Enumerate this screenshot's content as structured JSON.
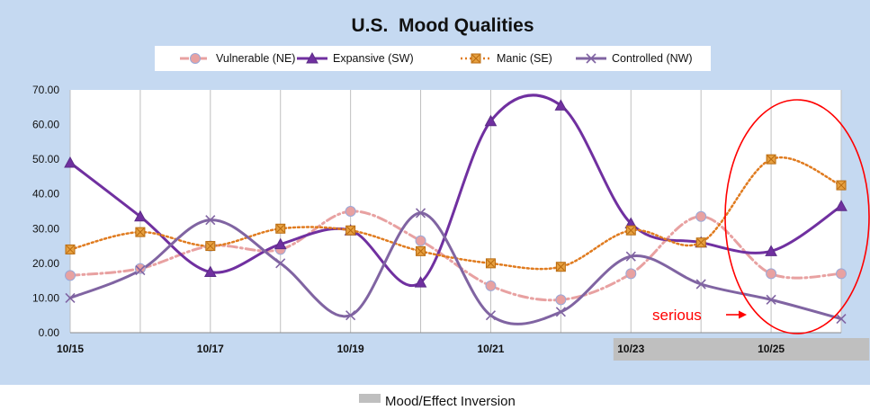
{
  "chart_data": {
    "type": "line",
    "title": "U.S.  Mood Qualities",
    "xlabel": "",
    "ylabel": "",
    "x_labels": [
      "10/15",
      "",
      "10/17",
      "",
      "10/19",
      "",
      "10/21",
      "",
      "10/23",
      "",
      "10/25",
      ""
    ],
    "ylim": [
      0,
      70
    ],
    "yticks": [
      "0.00",
      "10.00",
      "20.00",
      "30.00",
      "40.00",
      "50.00",
      "60.00",
      "70.00"
    ],
    "grid": "vertical",
    "legend_position": "top",
    "series": [
      {
        "name": "Vulnerable (NE)",
        "values": [
          16.5,
          18.5,
          25,
          24,
          35,
          26.5,
          13.5,
          9.5,
          17,
          33.5,
          17,
          17
        ],
        "color": "#e8a1a1",
        "marker": "circle",
        "line_style": "dash-dot"
      },
      {
        "name": "Expansive (SW)",
        "values": [
          49,
          33.5,
          17.5,
          25.5,
          29.5,
          14.5,
          61,
          65.5,
          31.5,
          26,
          23.5,
          36.5
        ],
        "color": "#7030a0",
        "marker": "triangle",
        "line_style": "solid"
      },
      {
        "name": "Manic (SE)",
        "values": [
          24,
          29,
          25,
          30,
          29.5,
          23.5,
          20,
          19,
          29.5,
          26,
          50,
          42.5
        ],
        "color": "#e07b1f",
        "marker": "square",
        "line_style": "dotted"
      },
      {
        "name": "Controlled (NW)",
        "values": [
          10,
          18,
          32.5,
          20,
          5,
          34.5,
          5,
          6,
          22,
          14,
          9.5,
          4
        ],
        "color": "#8064a2",
        "marker": "x",
        "line_style": "solid"
      }
    ],
    "shaded_region": {
      "from_index": 8,
      "to_index": 11,
      "color": "#bfbfbf"
    },
    "annotation": {
      "text": "serious",
      "color": "#ff0000"
    },
    "bottom_legend": {
      "label": "Mood/Effect Inversion",
      "color": "#bfbfbf"
    },
    "colors": {
      "background": "#c5d9f1",
      "plot_area": "#ffffff",
      "gridline": "#bfbfbf",
      "circle": "#ff0000"
    }
  }
}
